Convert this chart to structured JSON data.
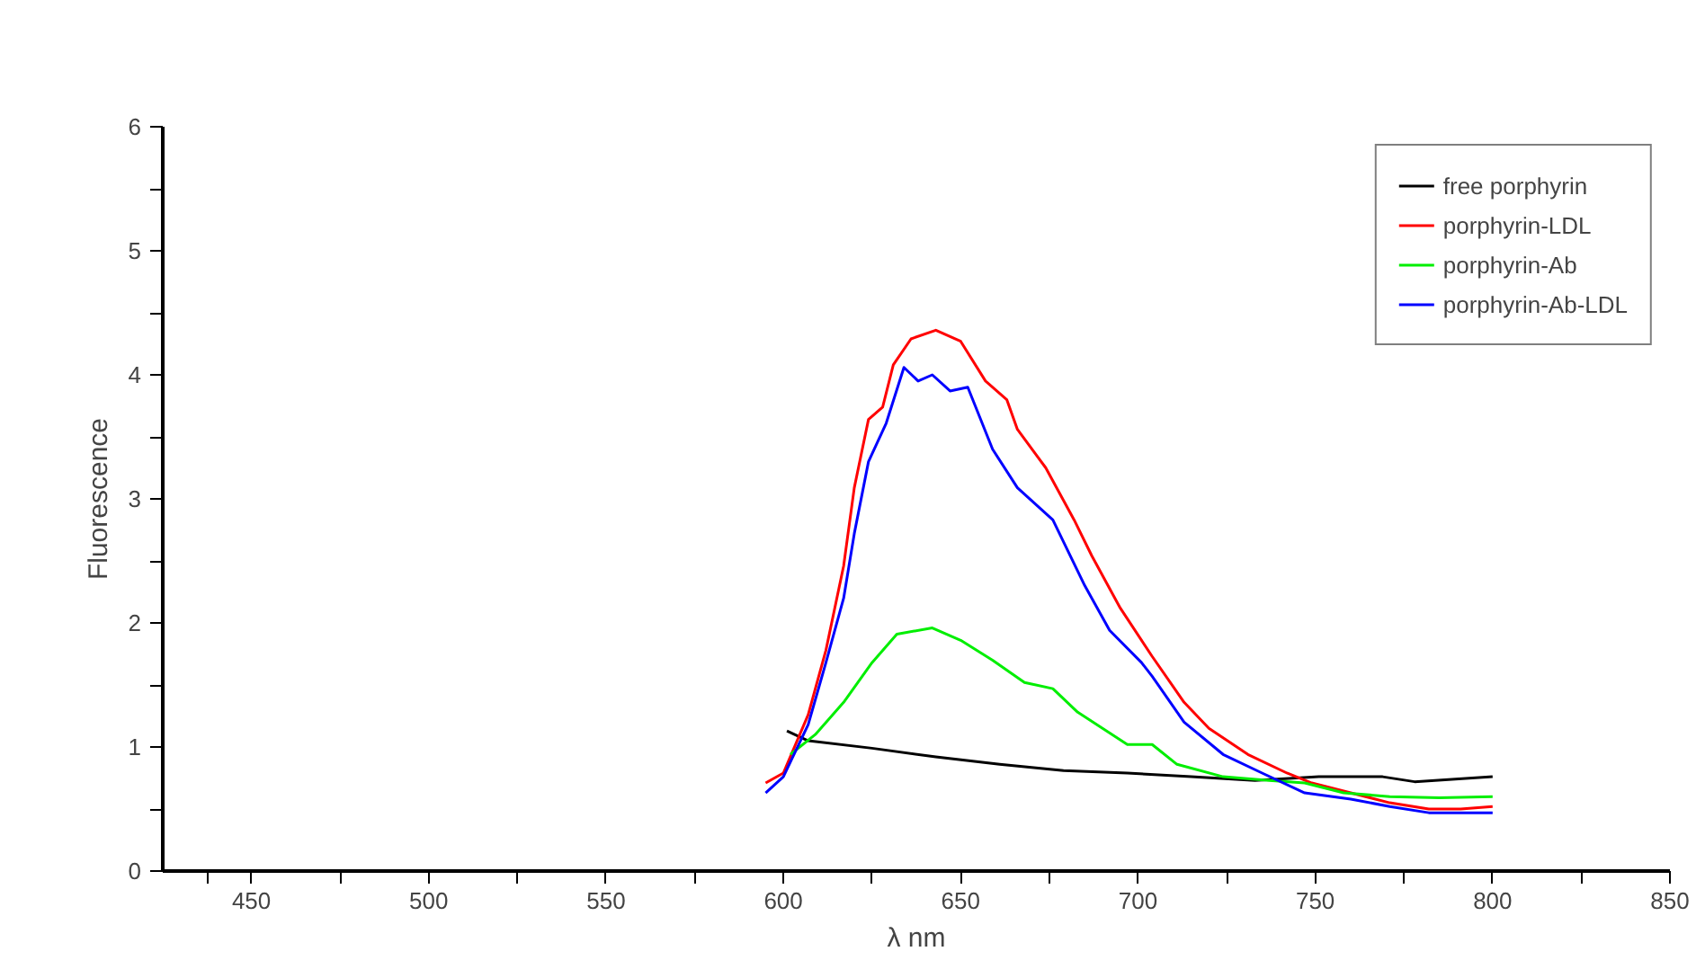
{
  "chart_data": {
    "type": "line",
    "xlabel": "λ nm",
    "ylabel": "Fluorescence",
    "xlim": [
      425,
      850
    ],
    "ylim": [
      0,
      6
    ],
    "xticks": [
      {
        "value": 437.5,
        "label": null
      },
      450,
      {
        "value": 475,
        "label": null
      },
      500,
      {
        "value": 525,
        "label": null
      },
      550,
      {
        "value": 575,
        "label": null
      },
      600,
      {
        "value": 625,
        "label": null
      },
      650,
      {
        "value": 675,
        "label": null
      },
      700,
      {
        "value": 725,
        "label": null
      },
      750,
      {
        "value": 775,
        "label": null
      },
      800,
      {
        "value": 825,
        "label": null
      },
      850
    ],
    "yticks": [
      0,
      {
        "value": 0.5,
        "label": null
      },
      1,
      {
        "value": 1.5,
        "label": null
      },
      2,
      {
        "value": 2.5,
        "label": null
      },
      3,
      {
        "value": 3.5,
        "label": null
      },
      4,
      {
        "value": 4.5,
        "label": null
      },
      5,
      {
        "value": 5.5,
        "label": null
      },
      6
    ],
    "grid": false,
    "legend": "top right",
    "line_style": "solid",
    "series": [
      {
        "name": "free porphyrin",
        "color": "#000000",
        "x": [
          601,
          607,
          625,
          643,
          661,
          679,
          697,
          715,
          733,
          751,
          769,
          778,
          800
        ],
        "values": [
          1.13,
          1.05,
          0.99,
          0.92,
          0.86,
          0.81,
          0.79,
          0.76,
          0.73,
          0.76,
          0.76,
          0.72,
          0.76
        ]
      },
      {
        "name": "porphyrin-LDL",
        "color": "#ff0000",
        "x": [
          595,
          600,
          607,
          612,
          617,
          620,
          624,
          628,
          631,
          636,
          643,
          650,
          657,
          663,
          666,
          674,
          682,
          687,
          695,
          704,
          713,
          720,
          731,
          742,
          749,
          760,
          771,
          782,
          791,
          800
        ],
        "values": [
          0.71,
          0.79,
          1.26,
          1.78,
          2.46,
          3.09,
          3.64,
          3.74,
          4.08,
          4.29,
          4.36,
          4.27,
          3.95,
          3.8,
          3.56,
          3.25,
          2.83,
          2.54,
          2.12,
          1.73,
          1.36,
          1.15,
          0.94,
          0.79,
          0.71,
          0.63,
          0.55,
          0.5,
          0.5,
          0.52
        ]
      },
      {
        "name": "porphyrin-Ab",
        "color": "#00ee00",
        "x": [
          602,
          609,
          617,
          625,
          632,
          642,
          650,
          659,
          668,
          676,
          683,
          690,
          697,
          704,
          711,
          724,
          737,
          747,
          758,
          771,
          785,
          800
        ],
        "values": [
          0.94,
          1.1,
          1.36,
          1.68,
          1.91,
          1.96,
          1.86,
          1.7,
          1.52,
          1.47,
          1.28,
          1.15,
          1.02,
          1.02,
          0.86,
          0.76,
          0.73,
          0.71,
          0.63,
          0.6,
          0.59,
          0.6
        ]
      },
      {
        "name": "porphyrin-Ab-LDL",
        "color": "#0000ff",
        "x": [
          595,
          600,
          607,
          612,
          617,
          620,
          624,
          629,
          634,
          638,
          642,
          647,
          652,
          659,
          666,
          676,
          685,
          692,
          701,
          704,
          713,
          724,
          735,
          747,
          760,
          771,
          782,
          800
        ],
        "values": [
          0.63,
          0.76,
          1.18,
          1.68,
          2.2,
          2.72,
          3.3,
          3.61,
          4.06,
          3.95,
          4.0,
          3.87,
          3.9,
          3.4,
          3.09,
          2.83,
          2.3,
          1.94,
          1.68,
          1.57,
          1.2,
          0.94,
          0.79,
          0.63,
          0.58,
          0.52,
          0.47,
          0.47
        ]
      }
    ]
  }
}
